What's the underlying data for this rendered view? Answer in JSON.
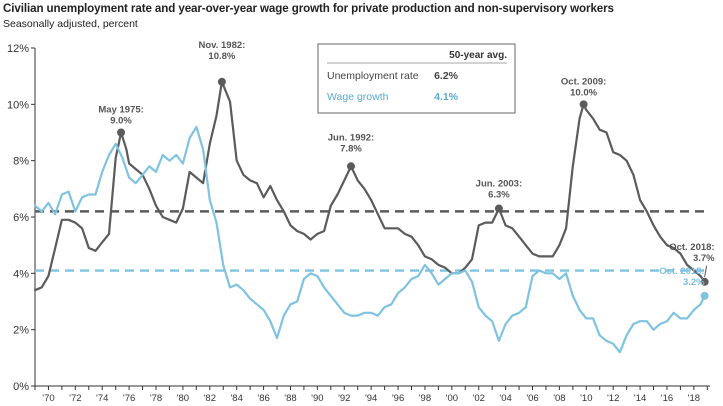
{
  "title": "Civilian unemployment rate and year-over-year wage growth for private production and non-supervisory workers",
  "subtitle": "Seasonally adjusted, percent",
  "legend": {
    "header": "50-year avg.",
    "rows": [
      {
        "label": "Unemployment rate",
        "value": "6.2%"
      },
      {
        "label": "Wage growth",
        "value": "4.1%"
      }
    ]
  },
  "colors": {
    "unemployment": "#5b5b5b",
    "wage": "#7fc3e1"
  },
  "annotations": [
    {
      "series": "unemployment",
      "x": 1975.4,
      "y": 9.0,
      "line1": "May 1975:",
      "line2": "9.0%"
    },
    {
      "series": "unemployment",
      "x": 1982.9,
      "y": 10.8,
      "line1": "Nov. 1982:",
      "line2": "10.8%"
    },
    {
      "series": "unemployment",
      "x": 1992.5,
      "y": 7.8,
      "line1": "Jun. 1992:",
      "line2": "7.8%"
    },
    {
      "series": "unemployment",
      "x": 2003.5,
      "y": 6.3,
      "line1": "Jun. 2003:",
      "line2": "6.3%"
    },
    {
      "series": "unemployment",
      "x": 2009.8,
      "y": 10.0,
      "line1": "Oct. 2009:",
      "line2": "10.0%"
    },
    {
      "series": "unemployment",
      "x": 2018.8,
      "y": 3.7,
      "line1": "Oct. 2018:",
      "line2": "3.7%"
    },
    {
      "series": "wage",
      "x": 2018.8,
      "y": 3.2,
      "line1": "Oct. 2018:",
      "line2": "3.2%"
    }
  ],
  "chart_data": {
    "type": "line",
    "xlim": [
      1969,
      2019.2
    ],
    "ylim": [
      0,
      12
    ],
    "yticks": [
      0,
      2,
      4,
      6,
      8,
      10,
      12
    ],
    "ytick_labels": [
      "0%",
      "2%",
      "4%",
      "6%",
      "8%",
      "10%",
      "12%"
    ],
    "xticks": [
      1970,
      1972,
      1974,
      1976,
      1978,
      1980,
      1982,
      1984,
      1986,
      1988,
      1990,
      1992,
      1994,
      1996,
      1998,
      2000,
      2002,
      2004,
      2006,
      2008,
      2010,
      2012,
      2014,
      2016,
      2018
    ],
    "xtick_labels": [
      "'70",
      "'72",
      "'74",
      "'76",
      "'78",
      "'80",
      "'82",
      "'84",
      "'86",
      "'88",
      "'90",
      "'92",
      "'94",
      "'96",
      "'98",
      "'00",
      "'02",
      "'04",
      "'06",
      "'08",
      "'10",
      "'12",
      "'14",
      "'16",
      "'18"
    ],
    "reference_lines": [
      {
        "series": "unemployment",
        "y": 6.2
      },
      {
        "series": "wage",
        "y": 4.1
      }
    ],
    "series": [
      {
        "name": "Unemployment rate",
        "x": [
          1969.0,
          1969.5,
          1970.0,
          1970.5,
          1971.0,
          1971.5,
          1972.0,
          1972.5,
          1973.0,
          1973.5,
          1974.0,
          1974.5,
          1975.0,
          1975.4,
          1975.8,
          1976.0,
          1976.5,
          1977.0,
          1977.5,
          1978.0,
          1978.5,
          1979.0,
          1979.5,
          1980.0,
          1980.5,
          1981.0,
          1981.5,
          1982.0,
          1982.5,
          1982.9,
          1983.5,
          1984.0,
          1984.5,
          1985.0,
          1985.5,
          1986.0,
          1986.5,
          1987.0,
          1987.5,
          1988.0,
          1988.5,
          1989.0,
          1989.5,
          1990.0,
          1990.5,
          1991.0,
          1991.5,
          1992.0,
          1992.5,
          1993.0,
          1993.5,
          1994.0,
          1994.5,
          1995.0,
          1995.5,
          1996.0,
          1996.5,
          1997.0,
          1997.5,
          1998.0,
          1998.5,
          1999.0,
          1999.5,
          2000.0,
          2000.5,
          2001.0,
          2001.5,
          2002.0,
          2002.5,
          2003.0,
          2003.5,
          2004.0,
          2004.5,
          2005.0,
          2005.5,
          2006.0,
          2006.5,
          2007.0,
          2007.5,
          2008.0,
          2008.5,
          2009.0,
          2009.5,
          2009.8,
          2010.0,
          2010.5,
          2011.0,
          2011.5,
          2012.0,
          2012.5,
          2013.0,
          2013.5,
          2014.0,
          2014.5,
          2015.0,
          2015.5,
          2016.0,
          2016.5,
          2017.0,
          2017.5,
          2018.0,
          2018.5,
          2018.8
        ],
        "values": [
          3.4,
          3.5,
          3.9,
          4.9,
          5.9,
          5.9,
          5.8,
          5.6,
          4.9,
          4.8,
          5.1,
          5.4,
          8.1,
          9.0,
          8.4,
          7.9,
          7.7,
          7.5,
          7.0,
          6.4,
          6.0,
          5.9,
          5.8,
          6.3,
          7.6,
          7.4,
          7.2,
          8.6,
          9.6,
          10.8,
          10.1,
          8.0,
          7.5,
          7.3,
          7.2,
          6.7,
          7.1,
          6.6,
          6.2,
          5.7,
          5.5,
          5.4,
          5.2,
          5.4,
          5.5,
          6.4,
          6.8,
          7.3,
          7.8,
          7.3,
          7.0,
          6.6,
          6.1,
          5.6,
          5.6,
          5.6,
          5.4,
          5.3,
          5.0,
          4.6,
          4.5,
          4.3,
          4.2,
          4.0,
          4.0,
          4.2,
          4.5,
          5.7,
          5.8,
          5.8,
          6.3,
          5.7,
          5.6,
          5.3,
          5.0,
          4.7,
          4.6,
          4.6,
          4.6,
          5.0,
          5.6,
          7.8,
          9.5,
          10.0,
          9.8,
          9.5,
          9.1,
          9.0,
          8.3,
          8.2,
          8.0,
          7.5,
          6.6,
          6.2,
          5.7,
          5.3,
          5.0,
          4.9,
          4.7,
          4.3,
          4.1,
          3.9,
          3.7
        ]
      },
      {
        "name": "Wage growth",
        "x": [
          1969.0,
          1969.5,
          1970.0,
          1970.5,
          1971.0,
          1971.5,
          1972.0,
          1972.5,
          1973.0,
          1973.5,
          1974.0,
          1974.5,
          1975.0,
          1975.5,
          1976.0,
          1976.5,
          1977.0,
          1977.5,
          1978.0,
          1978.5,
          1979.0,
          1979.5,
          1980.0,
          1980.5,
          1981.0,
          1981.5,
          1982.0,
          1982.5,
          1983.0,
          1983.5,
          1984.0,
          1984.5,
          1985.0,
          1985.5,
          1986.0,
          1986.5,
          1987.0,
          1987.5,
          1988.0,
          1988.5,
          1989.0,
          1989.5,
          1990.0,
          1990.5,
          1991.0,
          1991.5,
          1992.0,
          1992.5,
          1993.0,
          1993.5,
          1994.0,
          1994.5,
          1995.0,
          1995.5,
          1996.0,
          1996.5,
          1997.0,
          1997.5,
          1998.0,
          1998.5,
          1999.0,
          1999.5,
          2000.0,
          2000.5,
          2001.0,
          2001.5,
          2002.0,
          2002.5,
          2003.0,
          2003.5,
          2004.0,
          2004.5,
          2005.0,
          2005.5,
          2006.0,
          2006.5,
          2007.0,
          2007.5,
          2008.0,
          2008.5,
          2009.0,
          2009.5,
          2010.0,
          2010.5,
          2011.0,
          2011.5,
          2012.0,
          2012.5,
          2013.0,
          2013.5,
          2014.0,
          2014.5,
          2015.0,
          2015.5,
          2016.0,
          2016.5,
          2017.0,
          2017.5,
          2018.0,
          2018.5,
          2018.8
        ],
        "values": [
          6.4,
          6.2,
          6.5,
          6.1,
          6.8,
          6.9,
          6.2,
          6.7,
          6.8,
          6.8,
          7.6,
          8.2,
          8.6,
          8.1,
          7.4,
          7.2,
          7.5,
          7.8,
          7.6,
          8.2,
          8.0,
          8.2,
          7.9,
          8.8,
          9.2,
          8.4,
          6.6,
          5.8,
          4.3,
          3.5,
          3.6,
          3.4,
          3.1,
          2.9,
          2.7,
          2.3,
          1.7,
          2.5,
          2.9,
          3.0,
          3.8,
          4.0,
          3.9,
          3.5,
          3.2,
          2.9,
          2.6,
          2.5,
          2.5,
          2.6,
          2.6,
          2.5,
          2.8,
          2.9,
          3.3,
          3.5,
          3.8,
          3.9,
          4.3,
          4.0,
          3.6,
          3.8,
          4.0,
          4.0,
          4.1,
          3.7,
          2.8,
          2.5,
          2.3,
          1.6,
          2.2,
          2.5,
          2.6,
          2.8,
          3.9,
          4.1,
          4.0,
          4.0,
          3.8,
          4.0,
          3.2,
          2.7,
          2.4,
          2.4,
          1.8,
          1.6,
          1.5,
          1.2,
          1.8,
          2.2,
          2.3,
          2.3,
          2.0,
          2.2,
          2.3,
          2.6,
          2.4,
          2.4,
          2.7,
          2.9,
          3.2
        ]
      }
    ]
  }
}
